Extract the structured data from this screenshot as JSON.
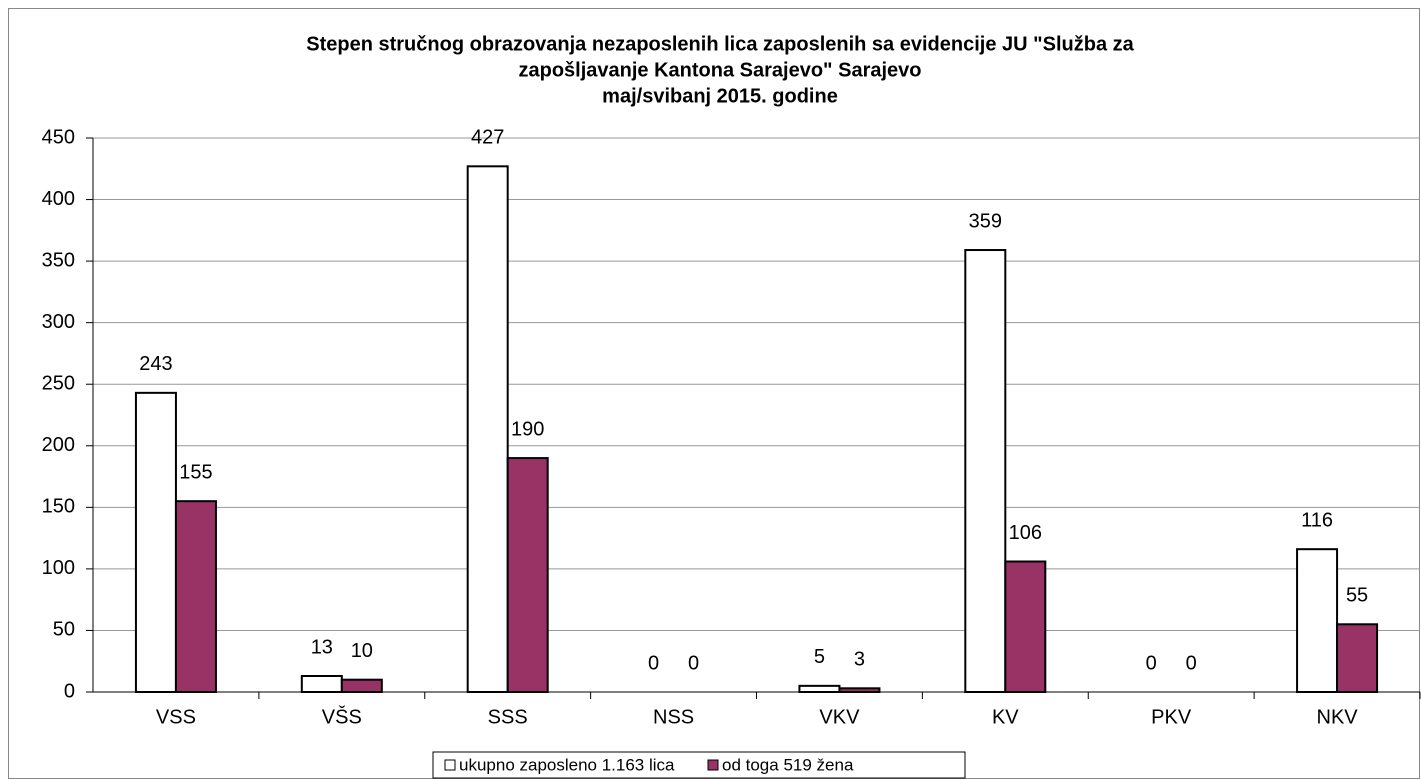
{
  "chart_data": {
    "type": "bar",
    "title": [
      "Stepen stručnog obrazovanja  nezaposlenih  lica zaposlenih sa evidencije JU \"Služba za",
      "zapošljavanje Kantona Sarajevo\"  Sarajevo",
      "maj/svibanj 2015. godine"
    ],
    "categories": [
      "VSS",
      "VŠS",
      "SSS",
      "NSS",
      "VKV",
      "KV",
      "PKV",
      "NKV"
    ],
    "series": [
      {
        "name": "ukupno zaposleno 1.163 lica",
        "color": "#ffffff",
        "values": [
          243,
          13,
          427,
          0,
          5,
          359,
          0,
          116
        ]
      },
      {
        "name": "od toga 519 žena",
        "color": "#993366",
        "values": [
          155,
          10,
          190,
          0,
          3,
          106,
          0,
          55
        ]
      }
    ],
    "ylim": [
      0,
      450
    ],
    "yticks": [
      0,
      50,
      100,
      150,
      200,
      250,
      300,
      350,
      400,
      450
    ],
    "grid": true,
    "legend": "bottom"
  }
}
